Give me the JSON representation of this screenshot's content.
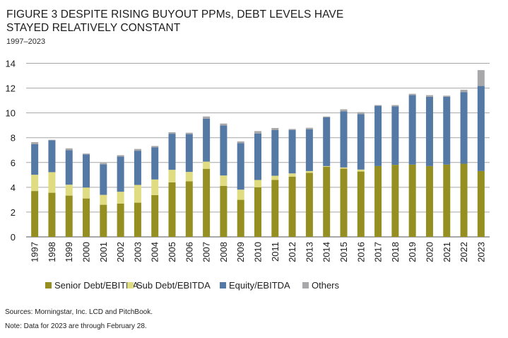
{
  "figure": {
    "title": "FIGURE 3   DESPITE RISING BUYOUT PPMs, DEBT LEVELS HAVE STAYED RELATIVELY CONSTANT",
    "subtitle": "1997–2023",
    "source": "Sources: Morningstar, Inc. LCD and PitchBook.",
    "note": "Note: Data for 2023 are through February 28."
  },
  "chart_data": {
    "type": "bar",
    "stacked": true,
    "title": "DESPITE RISING BUYOUT PPMs, DEBT LEVELS HAVE STAYED RELATIVELY CONSTANT",
    "subtitle": "1997–2023",
    "xlabel": "",
    "ylabel": "",
    "ylim": [
      0,
      14
    ],
    "yticks": [
      0,
      2,
      4,
      6,
      8,
      10,
      12,
      14
    ],
    "grid": true,
    "legend_position": "bottom",
    "categories": [
      "1997",
      "1998",
      "1999",
      "2000",
      "2001",
      "2002",
      "2003",
      "2004",
      "2005",
      "2006",
      "2007",
      "2008",
      "2009",
      "2010",
      "2011",
      "2012",
      "2013",
      "2014",
      "2015",
      "2016",
      "2017",
      "2018",
      "2019",
      "2020",
      "2021",
      "2022",
      "2023"
    ],
    "series": [
      {
        "name": "Senior Debt/EBITDA",
        "color": "#958F22",
        "values": [
          3.7,
          3.56,
          3.33,
          3.1,
          2.59,
          2.69,
          2.76,
          3.37,
          4.4,
          4.48,
          5.49,
          4.11,
          2.99,
          4.0,
          4.59,
          4.86,
          5.16,
          5.66,
          5.5,
          5.27,
          5.71,
          5.81,
          5.83,
          5.71,
          5.83,
          5.9,
          5.31
        ]
      },
      {
        "name": "Sub Debt/EBITDA",
        "color": "#E0DC82",
        "values": [
          1.31,
          1.66,
          0.88,
          0.88,
          0.8,
          0.95,
          1.43,
          1.26,
          1.01,
          0.76,
          0.58,
          0.84,
          0.82,
          0.59,
          0.34,
          0.26,
          0.15,
          0.05,
          0.1,
          0.16,
          0.0,
          0.0,
          0.0,
          0.0,
          0.0,
          0.0,
          0.0
        ]
      },
      {
        "name": "Equity/EBITDA",
        "color": "#5479A5",
        "values": [
          2.46,
          2.57,
          2.78,
          2.67,
          2.46,
          2.84,
          2.76,
          2.59,
          2.91,
          3.05,
          3.47,
          4.04,
          3.75,
          3.75,
          3.68,
          3.51,
          3.36,
          3.93,
          4.53,
          4.47,
          4.86,
          4.72,
          5.6,
          5.59,
          5.47,
          5.78,
          6.86
        ]
      },
      {
        "name": "Others",
        "color": "#A8A8AA",
        "values": [
          0.17,
          0.04,
          0.15,
          0.07,
          0.11,
          0.11,
          0.14,
          0.11,
          0.12,
          0.11,
          0.17,
          0.15,
          0.14,
          0.19,
          0.17,
          0.07,
          0.13,
          0.07,
          0.16,
          0.16,
          0.06,
          0.1,
          0.11,
          0.13,
          0.09,
          0.19,
          1.28
        ]
      }
    ]
  }
}
